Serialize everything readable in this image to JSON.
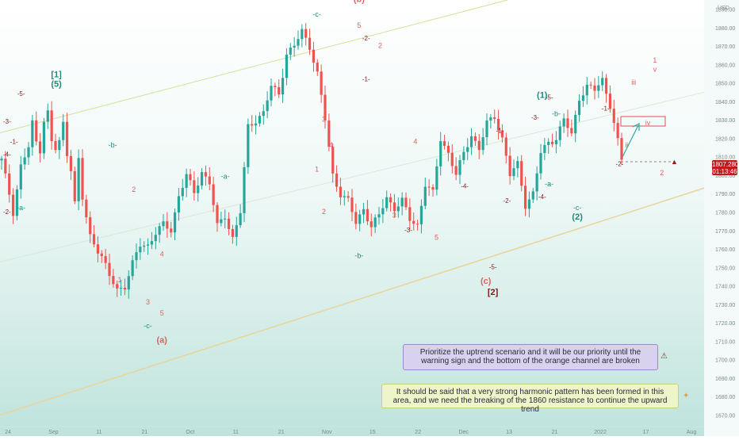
{
  "chart_data": {
    "type": "candlestick",
    "currency": "USD",
    "current_price": "1807.280",
    "countdown": "01:13:46",
    "y_ticks": [
      1890,
      1880,
      1870,
      1860,
      1850,
      1840,
      1830,
      1820,
      1810,
      1800,
      1790,
      1780,
      1770,
      1760,
      1750,
      1740,
      1730,
      1720,
      1710,
      1700,
      1690,
      1680,
      1670
    ],
    "y_range": [
      1665,
      1895
    ],
    "x_ticks": [
      "24",
      "Sep",
      "11",
      "21",
      "Oct",
      "11",
      "21",
      "Nov",
      "15",
      "22",
      "Dec",
      "13",
      "21",
      "2022",
      "17",
      "Aug"
    ],
    "wave_labels": {
      "green": [
        {
          "text": "[1]",
          "x": 8,
          "y": 1853
        },
        {
          "text": "(5)",
          "x": 8,
          "y": 1848
        },
        {
          "text": "-c-",
          "x": 45,
          "y": 1886
        },
        {
          "text": "-a-",
          "x": 32,
          "y": 1798
        },
        {
          "text": "-b-",
          "x": 51,
          "y": 1755
        },
        {
          "text": "-b-",
          "x": 16,
          "y": 1815
        },
        {
          "text": "-a-",
          "x": 3,
          "y": 1781
        },
        {
          "text": "-c-",
          "x": 21,
          "y": 1717
        },
        {
          "text": "(1)",
          "x": 77,
          "y": 1842
        },
        {
          "text": "-b-",
          "x": 79,
          "y": 1832
        },
        {
          "text": "-a-",
          "x": 78,
          "y": 1794
        },
        {
          "text": "-c-",
          "x": 82,
          "y": 1781
        },
        {
          "text": "(2)",
          "x": 82,
          "y": 1776
        }
      ],
      "dark": [
        {
          "text": "-1-",
          "x": 2,
          "y": 1817
        },
        {
          "text": "-2-",
          "x": 1,
          "y": 1779
        },
        {
          "text": "-3-",
          "x": 1,
          "y": 1828
        },
        {
          "text": "-4-",
          "x": 1,
          "y": 1810
        },
        {
          "text": "-5-",
          "x": 3,
          "y": 1843
        },
        {
          "text": "-2-",
          "x": 52,
          "y": 1873
        },
        {
          "text": "-1-",
          "x": 52,
          "y": 1851
        },
        {
          "text": "-3-",
          "x": 58,
          "y": 1769
        },
        {
          "text": "-4-",
          "x": 66,
          "y": 1793
        },
        {
          "text": "-5-",
          "x": 70,
          "y": 1749
        },
        {
          "text": "-1-",
          "x": 71,
          "y": 1823
        },
        {
          "text": "-2-",
          "x": 72,
          "y": 1785
        },
        {
          "text": "-3-",
          "x": 76,
          "y": 1830
        },
        {
          "text": "-4-",
          "x": 77,
          "y": 1787
        },
        {
          "text": "-5-",
          "x": 78,
          "y": 1841
        },
        {
          "text": "-1-",
          "x": 86,
          "y": 1835
        },
        {
          "text": "-2-",
          "x": 88,
          "y": 1805
        },
        {
          "text": "[2]",
          "x": 70,
          "y": 1735
        }
      ],
      "red": [
        {
          "text": "(b)",
          "x": 51,
          "y": 1894
        },
        {
          "text": "5",
          "x": 51,
          "y": 1880
        },
        {
          "text": "2",
          "x": 54,
          "y": 1869
        },
        {
          "text": "3",
          "x": 46,
          "y": 1829
        },
        {
          "text": "4",
          "x": 47,
          "y": 1815
        },
        {
          "text": "1",
          "x": 45,
          "y": 1802
        },
        {
          "text": "2",
          "x": 46,
          "y": 1779
        },
        {
          "text": "4",
          "x": 59,
          "y": 1817
        },
        {
          "text": "3",
          "x": 56,
          "y": 1777
        },
        {
          "text": "5",
          "x": 62,
          "y": 1765
        },
        {
          "text": "(c)",
          "x": 69,
          "y": 1741
        },
        {
          "text": "2",
          "x": 19,
          "y": 1791
        },
        {
          "text": "4",
          "x": 23,
          "y": 1756
        },
        {
          "text": "1",
          "x": 17,
          "y": 1742
        },
        {
          "text": "3",
          "x": 21,
          "y": 1730
        },
        {
          "text": "5",
          "x": 23,
          "y": 1724
        },
        {
          "text": "(a)",
          "x": 23,
          "y": 1709
        },
        {
          "text": "1",
          "x": 93,
          "y": 1861
        },
        {
          "text": "v",
          "x": 93,
          "y": 1856
        },
        {
          "text": "iii",
          "x": 90,
          "y": 1849
        },
        {
          "text": "iv",
          "x": 92,
          "y": 1827
        },
        {
          "text": "ii",
          "x": 89,
          "y": 1815
        },
        {
          "text": "2",
          "x": 94,
          "y": 1800
        }
      ]
    }
  },
  "notes": {
    "uptrend": "Prioritize the uptrend scenario and it will be our priority until the warning sign and the bottom of the orange channel are broken",
    "harmonic": "It should be said that a very strong harmonic pattern has been formed in this area, and we need the breaking of the 1860 resistance to continue the upward trend"
  },
  "colors": {
    "bg_top": "#ffffff",
    "bg_bottom": "#bfe3dc",
    "up": "#26a69a",
    "down": "#ef5350",
    "green_label": "#1f8a7a",
    "red_label": "#e06060",
    "dark_label": "#7a1a1a",
    "channel": "#e9d49a",
    "price_tag": "#c21a1a"
  }
}
